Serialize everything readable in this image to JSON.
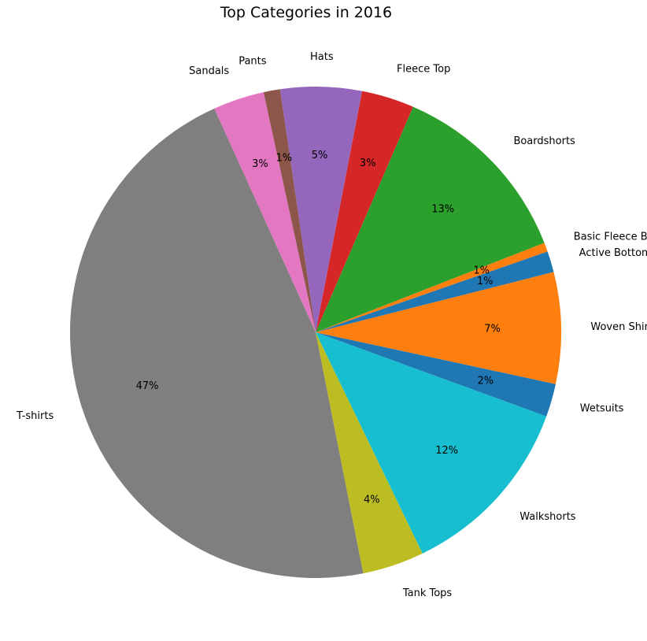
{
  "chart_data": {
    "type": "pie",
    "title": "Top Categories in 2016",
    "slices": [
      {
        "label": "Wetsuits",
        "value": 2.2,
        "pct_label": "2%",
        "color": "#1f77b4"
      },
      {
        "label": "Woven Shirt",
        "value": 7.4,
        "pct_label": "7%",
        "color": "#ff7f0e"
      },
      {
        "label": "Active Bottoms",
        "value": 1.4,
        "pct_label": "1%",
        "color": "#1f77b4"
      },
      {
        "label": "Basic Fleece Bottom",
        "value": 0.6,
        "pct_label": "1%",
        "color": "#ff7f0e"
      },
      {
        "label": "Boardshorts",
        "value": 12.7,
        "pct_label": "13%",
        "color": "#2ca02c"
      },
      {
        "label": "Fleece Top",
        "value": 3.5,
        "pct_label": "3%",
        "color": "#d62728"
      },
      {
        "label": "Hats",
        "value": 5.4,
        "pct_label": "5%",
        "color": "#9467bd"
      },
      {
        "label": "Pants",
        "value": 1.1,
        "pct_label": "1%",
        "color": "#8c564b"
      },
      {
        "label": "Sandals",
        "value": 3.4,
        "pct_label": "3%",
        "color": "#e377c2"
      },
      {
        "label": "T-shirts",
        "value": 46.8,
        "pct_label": "47%",
        "color": "#7f7f7f"
      },
      {
        "label": "Tank Tops",
        "value": 4.1,
        "pct_label": "4%",
        "color": "#bcbd22"
      },
      {
        "label": "Walkshorts",
        "value": 12.4,
        "pct_label": "12%",
        "color": "#17becf"
      }
    ],
    "start_angle_deg": -20,
    "direction": "counterclockwise",
    "legend": "none"
  }
}
